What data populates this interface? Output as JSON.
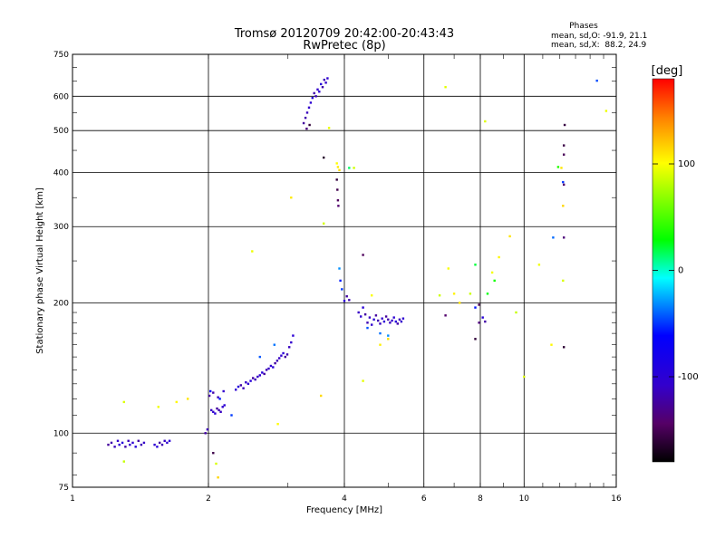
{
  "chart_data": {
    "type": "scatter",
    "title": "Tromsø 20120709 20:42:00-20:43:43",
    "subtitle": "RwPretec (8p)",
    "phases": {
      "heading": "Phases",
      "line_o": "mean, sd,O: -91.9, 21.1",
      "line_x": "mean, sd,X:  88.2, 24.9"
    },
    "xlabel": "Frequency [MHz]",
    "ylabel": "Stationary phase Virtual Height [km]",
    "xscale": "log",
    "yscale": "log",
    "xlim": [
      1,
      16
    ],
    "ylim": [
      75,
      750
    ],
    "x_ticks": [
      {
        "value": 1,
        "label": "1"
      },
      {
        "value": 2,
        "label": "2"
      },
      {
        "value": 4,
        "label": "4"
      },
      {
        "value": 6,
        "label": "6"
      },
      {
        "value": 8,
        "label": "8"
      },
      {
        "value": 10,
        "label": "10"
      },
      {
        "value": 16,
        "label": "16"
      }
    ],
    "y_ticks": [
      {
        "value": 75,
        "label": "75"
      },
      {
        "value": 100,
        "label": "100"
      },
      {
        "value": 200,
        "label": "200"
      },
      {
        "value": 300,
        "label": "300"
      },
      {
        "value": 400,
        "label": "400"
      },
      {
        "value": 500,
        "label": "500"
      },
      {
        "value": 600,
        "label": "600"
      },
      {
        "value": 750,
        "label": "750"
      }
    ],
    "grid": true,
    "colorbar": {
      "label": "[deg]",
      "range": [
        -180,
        180
      ],
      "ticks": [
        {
          "value": 100,
          "label": "100"
        },
        {
          "value": 0,
          "label": "0"
        },
        {
          "value": -100,
          "label": "-100"
        }
      ]
    },
    "series": [
      {
        "name": "O-mode cluster (blue)",
        "phase": -110,
        "points": [
          [
            1.2,
            94
          ],
          [
            1.22,
            95
          ],
          [
            1.24,
            93
          ],
          [
            1.26,
            96
          ],
          [
            1.27,
            94
          ],
          [
            1.29,
            95
          ],
          [
            1.31,
            93
          ],
          [
            1.33,
            96
          ],
          [
            1.34,
            94
          ],
          [
            1.36,
            95
          ],
          [
            1.38,
            93
          ],
          [
            1.4,
            96
          ],
          [
            1.42,
            94
          ],
          [
            1.44,
            95
          ],
          [
            1.52,
            94
          ],
          [
            1.54,
            93
          ],
          [
            1.56,
            95
          ],
          [
            1.58,
            94
          ],
          [
            1.6,
            96
          ],
          [
            1.62,
            95
          ],
          [
            1.64,
            96
          ],
          [
            1.97,
            100
          ],
          [
            1.99,
            102
          ],
          [
            2.03,
            113
          ],
          [
            2.05,
            112
          ],
          [
            2.07,
            111
          ],
          [
            2.09,
            114
          ],
          [
            2.11,
            113
          ],
          [
            2.13,
            112
          ],
          [
            2.15,
            115
          ],
          [
            2.17,
            116
          ],
          [
            2.01,
            122
          ],
          [
            2.05,
            124
          ],
          [
            2.1,
            121
          ],
          [
            2.16,
            125
          ],
          [
            2.3,
            126
          ],
          [
            2.33,
            128
          ],
          [
            2.36,
            129
          ],
          [
            2.39,
            127
          ],
          [
            2.42,
            131
          ],
          [
            2.45,
            130
          ],
          [
            2.48,
            132
          ],
          [
            2.51,
            134
          ],
          [
            2.54,
            133
          ],
          [
            2.57,
            135
          ],
          [
            2.6,
            136
          ],
          [
            2.63,
            138
          ],
          [
            2.66,
            137
          ],
          [
            2.69,
            140
          ],
          [
            2.72,
            141
          ],
          [
            2.75,
            143
          ],
          [
            2.78,
            142
          ],
          [
            2.81,
            145
          ],
          [
            2.84,
            147
          ],
          [
            2.87,
            149
          ],
          [
            2.9,
            151
          ],
          [
            2.93,
            153
          ],
          [
            2.96,
            150
          ],
          [
            2.99,
            152
          ],
          [
            3.02,
            158
          ],
          [
            3.05,
            162
          ],
          [
            3.08,
            168
          ],
          [
            3.25,
            520
          ],
          [
            3.28,
            535
          ],
          [
            3.31,
            550
          ],
          [
            3.34,
            565
          ],
          [
            3.37,
            580
          ],
          [
            3.4,
            595
          ],
          [
            3.43,
            610
          ],
          [
            3.46,
            600
          ],
          [
            3.49,
            622
          ],
          [
            3.52,
            615
          ],
          [
            3.55,
            640
          ],
          [
            3.58,
            630
          ],
          [
            3.61,
            655
          ],
          [
            3.64,
            645
          ],
          [
            3.67,
            660
          ],
          [
            4.0,
            202
          ],
          [
            4.05,
            207
          ],
          [
            4.1,
            203
          ],
          [
            4.3,
            190
          ],
          [
            4.35,
            186
          ],
          [
            4.4,
            195
          ],
          [
            4.45,
            188
          ],
          [
            4.5,
            180
          ],
          [
            4.55,
            185
          ],
          [
            4.6,
            178
          ],
          [
            4.65,
            183
          ],
          [
            4.7,
            187
          ],
          [
            4.75,
            182
          ],
          [
            4.8,
            179
          ],
          [
            4.85,
            184
          ],
          [
            4.9,
            181
          ],
          [
            4.95,
            186
          ],
          [
            5.0,
            183
          ],
          [
            5.05,
            180
          ],
          [
            5.1,
            182
          ],
          [
            5.15,
            185
          ],
          [
            5.2,
            181
          ],
          [
            5.25,
            179
          ],
          [
            5.3,
            183
          ],
          [
            5.35,
            181
          ],
          [
            5.4,
            184
          ],
          [
            8.1,
            185
          ],
          [
            8.2,
            181
          ]
        ]
      },
      {
        "name": "Dark / purple points",
        "phase": -150,
        "points": [
          [
            3.6,
            433
          ],
          [
            3.85,
            385
          ],
          [
            3.86,
            365
          ],
          [
            3.87,
            345
          ],
          [
            3.88,
            335
          ],
          [
            3.3,
            505
          ],
          [
            3.35,
            515
          ],
          [
            2.05,
            90
          ],
          [
            4.4,
            258
          ],
          [
            6.7,
            187
          ],
          [
            7.95,
            180
          ],
          [
            7.8,
            165
          ],
          [
            12.25,
            462
          ],
          [
            12.25,
            440
          ],
          [
            12.25,
            375
          ],
          [
            12.25,
            283
          ],
          [
            12.25,
            158
          ],
          [
            12.3,
            515
          ],
          [
            7.95,
            198
          ]
        ]
      },
      {
        "name": "Cyan / teal points",
        "phase": -45,
        "points": [
          [
            2.02,
            125
          ],
          [
            2.12,
            120
          ],
          [
            2.25,
            110
          ],
          [
            2.6,
            150
          ],
          [
            2.8,
            160
          ],
          [
            3.9,
            240
          ],
          [
            3.92,
            225
          ],
          [
            3.95,
            215
          ],
          [
            4.5,
            175
          ],
          [
            4.8,
            170
          ],
          [
            5.0,
            168
          ],
          [
            7.8,
            195
          ],
          [
            12.2,
            380
          ],
          [
            14.5,
            652
          ],
          [
            11.6,
            283
          ]
        ]
      },
      {
        "name": "Yellow / orange / red points (X-mode)",
        "phase": 100,
        "points": [
          [
            1.3,
            86
          ],
          [
            1.3,
            118
          ],
          [
            1.55,
            115
          ],
          [
            1.7,
            118
          ],
          [
            1.8,
            120
          ],
          [
            2.1,
            79
          ],
          [
            2.08,
            85
          ],
          [
            2.5,
            263
          ],
          [
            2.85,
            105
          ],
          [
            3.05,
            350
          ],
          [
            3.55,
            122
          ],
          [
            3.6,
            305
          ],
          [
            3.7,
            507
          ],
          [
            3.85,
            420
          ],
          [
            3.87,
            412
          ],
          [
            3.9,
            405
          ],
          [
            4.2,
            410
          ],
          [
            4.4,
            132
          ],
          [
            4.6,
            208
          ],
          [
            4.8,
            160
          ],
          [
            5.0,
            165
          ],
          [
            6.5,
            208
          ],
          [
            6.7,
            630
          ],
          [
            6.8,
            240
          ],
          [
            7.0,
            210
          ],
          [
            7.2,
            200
          ],
          [
            7.6,
            210
          ],
          [
            8.2,
            525
          ],
          [
            8.5,
            235
          ],
          [
            8.8,
            255
          ],
          [
            9.3,
            285
          ],
          [
            9.6,
            190
          ],
          [
            10.0,
            135
          ],
          [
            10.8,
            245
          ],
          [
            11.5,
            160
          ],
          [
            12.1,
            410
          ],
          [
            12.2,
            335
          ],
          [
            12.2,
            225
          ],
          [
            15.2,
            555
          ]
        ]
      },
      {
        "name": "Green points",
        "phase": 30,
        "points": [
          [
            4.1,
            410
          ],
          [
            7.8,
            245
          ],
          [
            8.3,
            210
          ],
          [
            8.6,
            225
          ],
          [
            11.9,
            412
          ]
        ]
      }
    ]
  }
}
